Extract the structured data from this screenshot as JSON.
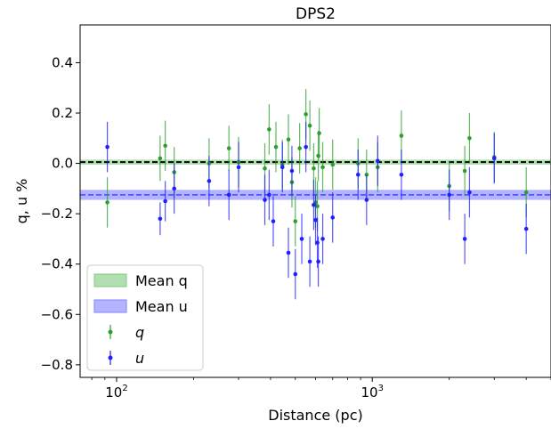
{
  "chart_data": {
    "type": "scatter",
    "title": "DPS2",
    "xlabel": "Distance (pc)",
    "ylabel": "q, u %",
    "xscale": "log",
    "xlim": [
      72,
      5000
    ],
    "ylim": [
      -0.85,
      0.55
    ],
    "yticks": [
      0.4,
      0.2,
      0.0,
      -0.2,
      -0.4,
      -0.6,
      -0.8
    ],
    "ytick_labels": [
      "0.4",
      "0.2",
      "0.0",
      "−0.2",
      "−0.4",
      "−0.6",
      "−0.8"
    ],
    "xticks_major": [
      100,
      1000
    ],
    "xtick_labels": [
      {
        "base": "10",
        "exp": "2"
      },
      {
        "base": "10",
        "exp": "3"
      }
    ],
    "grid": false,
    "legend_position": "lower-left",
    "colors": {
      "q": "#2ca02c",
      "u": "#1f1fff",
      "mean_q_band": "#7fc97f",
      "mean_u_band": "#8080ff"
    },
    "bands": [
      {
        "name": "Mean q",
        "center": 0.005,
        "lower": -0.005,
        "upper": 0.015,
        "line_style": "dashed"
      },
      {
        "name": "Mean u",
        "center": -0.125,
        "lower": -0.145,
        "upper": -0.105,
        "line_style": "dashed"
      }
    ],
    "series": [
      {
        "name": "q",
        "points": [
          {
            "x": 92,
            "y": -0.155,
            "err": 0.1
          },
          {
            "x": 148,
            "y": 0.02,
            "err": 0.09
          },
          {
            "x": 155,
            "y": 0.07,
            "err": 0.1
          },
          {
            "x": 168,
            "y": -0.035,
            "err": 0.1
          },
          {
            "x": 230,
            "y": 0.0,
            "err": 0.1
          },
          {
            "x": 275,
            "y": 0.06,
            "err": 0.09
          },
          {
            "x": 300,
            "y": 0.005,
            "err": 0.1
          },
          {
            "x": 380,
            "y": -0.02,
            "err": 0.1
          },
          {
            "x": 395,
            "y": 0.135,
            "err": 0.1
          },
          {
            "x": 420,
            "y": 0.065,
            "err": 0.1
          },
          {
            "x": 445,
            "y": -0.005,
            "err": 0.1
          },
          {
            "x": 470,
            "y": 0.095,
            "err": 0.1
          },
          {
            "x": 485,
            "y": -0.075,
            "err": 0.1
          },
          {
            "x": 500,
            "y": -0.23,
            "err": 0.1
          },
          {
            "x": 520,
            "y": 0.06,
            "err": 0.1
          },
          {
            "x": 550,
            "y": 0.195,
            "err": 0.1
          },
          {
            "x": 570,
            "y": 0.15,
            "err": 0.1
          },
          {
            "x": 590,
            "y": -0.02,
            "err": 0.1
          },
          {
            "x": 600,
            "y": -0.155,
            "err": 0.1
          },
          {
            "x": 610,
            "y": -0.17,
            "err": 0.1
          },
          {
            "x": 615,
            "y": 0.03,
            "err": 0.1
          },
          {
            "x": 620,
            "y": 0.12,
            "err": 0.1
          },
          {
            "x": 640,
            "y": -0.015,
            "err": 0.1
          },
          {
            "x": 700,
            "y": -0.005,
            "err": 0.1
          },
          {
            "x": 880,
            "y": 0.0,
            "err": 0.1
          },
          {
            "x": 950,
            "y": -0.045,
            "err": 0.1
          },
          {
            "x": 1050,
            "y": -0.015,
            "err": 0.1
          },
          {
            "x": 1300,
            "y": 0.11,
            "err": 0.1
          },
          {
            "x": 2000,
            "y": -0.09,
            "err": 0.1
          },
          {
            "x": 2300,
            "y": -0.03,
            "err": 0.1
          },
          {
            "x": 2400,
            "y": 0.1,
            "err": 0.1
          },
          {
            "x": 3000,
            "y": 0.025,
            "err": 0.1
          },
          {
            "x": 4000,
            "y": -0.115,
            "err": 0.1
          }
        ]
      },
      {
        "name": "u",
        "points": [
          {
            "x": 92,
            "y": 0.065,
            "err": 0.1
          },
          {
            "x": 148,
            "y": -0.22,
            "err": 0.065
          },
          {
            "x": 155,
            "y": -0.15,
            "err": 0.08
          },
          {
            "x": 168,
            "y": -0.1,
            "err": 0.1
          },
          {
            "x": 230,
            "y": -0.07,
            "err": 0.1
          },
          {
            "x": 275,
            "y": -0.125,
            "err": 0.1
          },
          {
            "x": 300,
            "y": -0.015,
            "err": 0.1
          },
          {
            "x": 380,
            "y": -0.145,
            "err": 0.1
          },
          {
            "x": 395,
            "y": -0.125,
            "err": 0.1
          },
          {
            "x": 410,
            "y": -0.23,
            "err": 0.1
          },
          {
            "x": 445,
            "y": -0.015,
            "err": 0.1
          },
          {
            "x": 470,
            "y": -0.355,
            "err": 0.1
          },
          {
            "x": 485,
            "y": -0.03,
            "err": 0.1
          },
          {
            "x": 500,
            "y": -0.44,
            "err": 0.1
          },
          {
            "x": 530,
            "y": -0.3,
            "err": 0.1
          },
          {
            "x": 550,
            "y": 0.065,
            "err": 0.1
          },
          {
            "x": 570,
            "y": -0.39,
            "err": 0.1
          },
          {
            "x": 590,
            "y": -0.165,
            "err": 0.1
          },
          {
            "x": 600,
            "y": -0.225,
            "err": 0.1
          },
          {
            "x": 610,
            "y": -0.315,
            "err": 0.1
          },
          {
            "x": 615,
            "y": -0.39,
            "err": 0.1
          },
          {
            "x": 640,
            "y": -0.3,
            "err": 0.1
          },
          {
            "x": 700,
            "y": -0.215,
            "err": 0.1
          },
          {
            "x": 880,
            "y": -0.045,
            "err": 0.1
          },
          {
            "x": 950,
            "y": -0.145,
            "err": 0.1
          },
          {
            "x": 1050,
            "y": 0.01,
            "err": 0.1
          },
          {
            "x": 1300,
            "y": -0.045,
            "err": 0.1
          },
          {
            "x": 2000,
            "y": -0.125,
            "err": 0.1
          },
          {
            "x": 2300,
            "y": -0.3,
            "err": 0.1
          },
          {
            "x": 2400,
            "y": -0.115,
            "err": 0.1
          },
          {
            "x": 3000,
            "y": 0.02,
            "err": 0.1
          },
          {
            "x": 4000,
            "y": -0.26,
            "err": 0.1
          }
        ]
      }
    ],
    "legend": [
      {
        "label": "Mean q",
        "kind": "band",
        "color": "#7fc97f"
      },
      {
        "label": "Mean u",
        "kind": "band",
        "color": "#8080ff"
      },
      {
        "label": "q",
        "kind": "errorbar",
        "color": "#2ca02c",
        "italic": true
      },
      {
        "label": "u",
        "kind": "errorbar",
        "color": "#1f1fff",
        "italic": true
      }
    ]
  }
}
